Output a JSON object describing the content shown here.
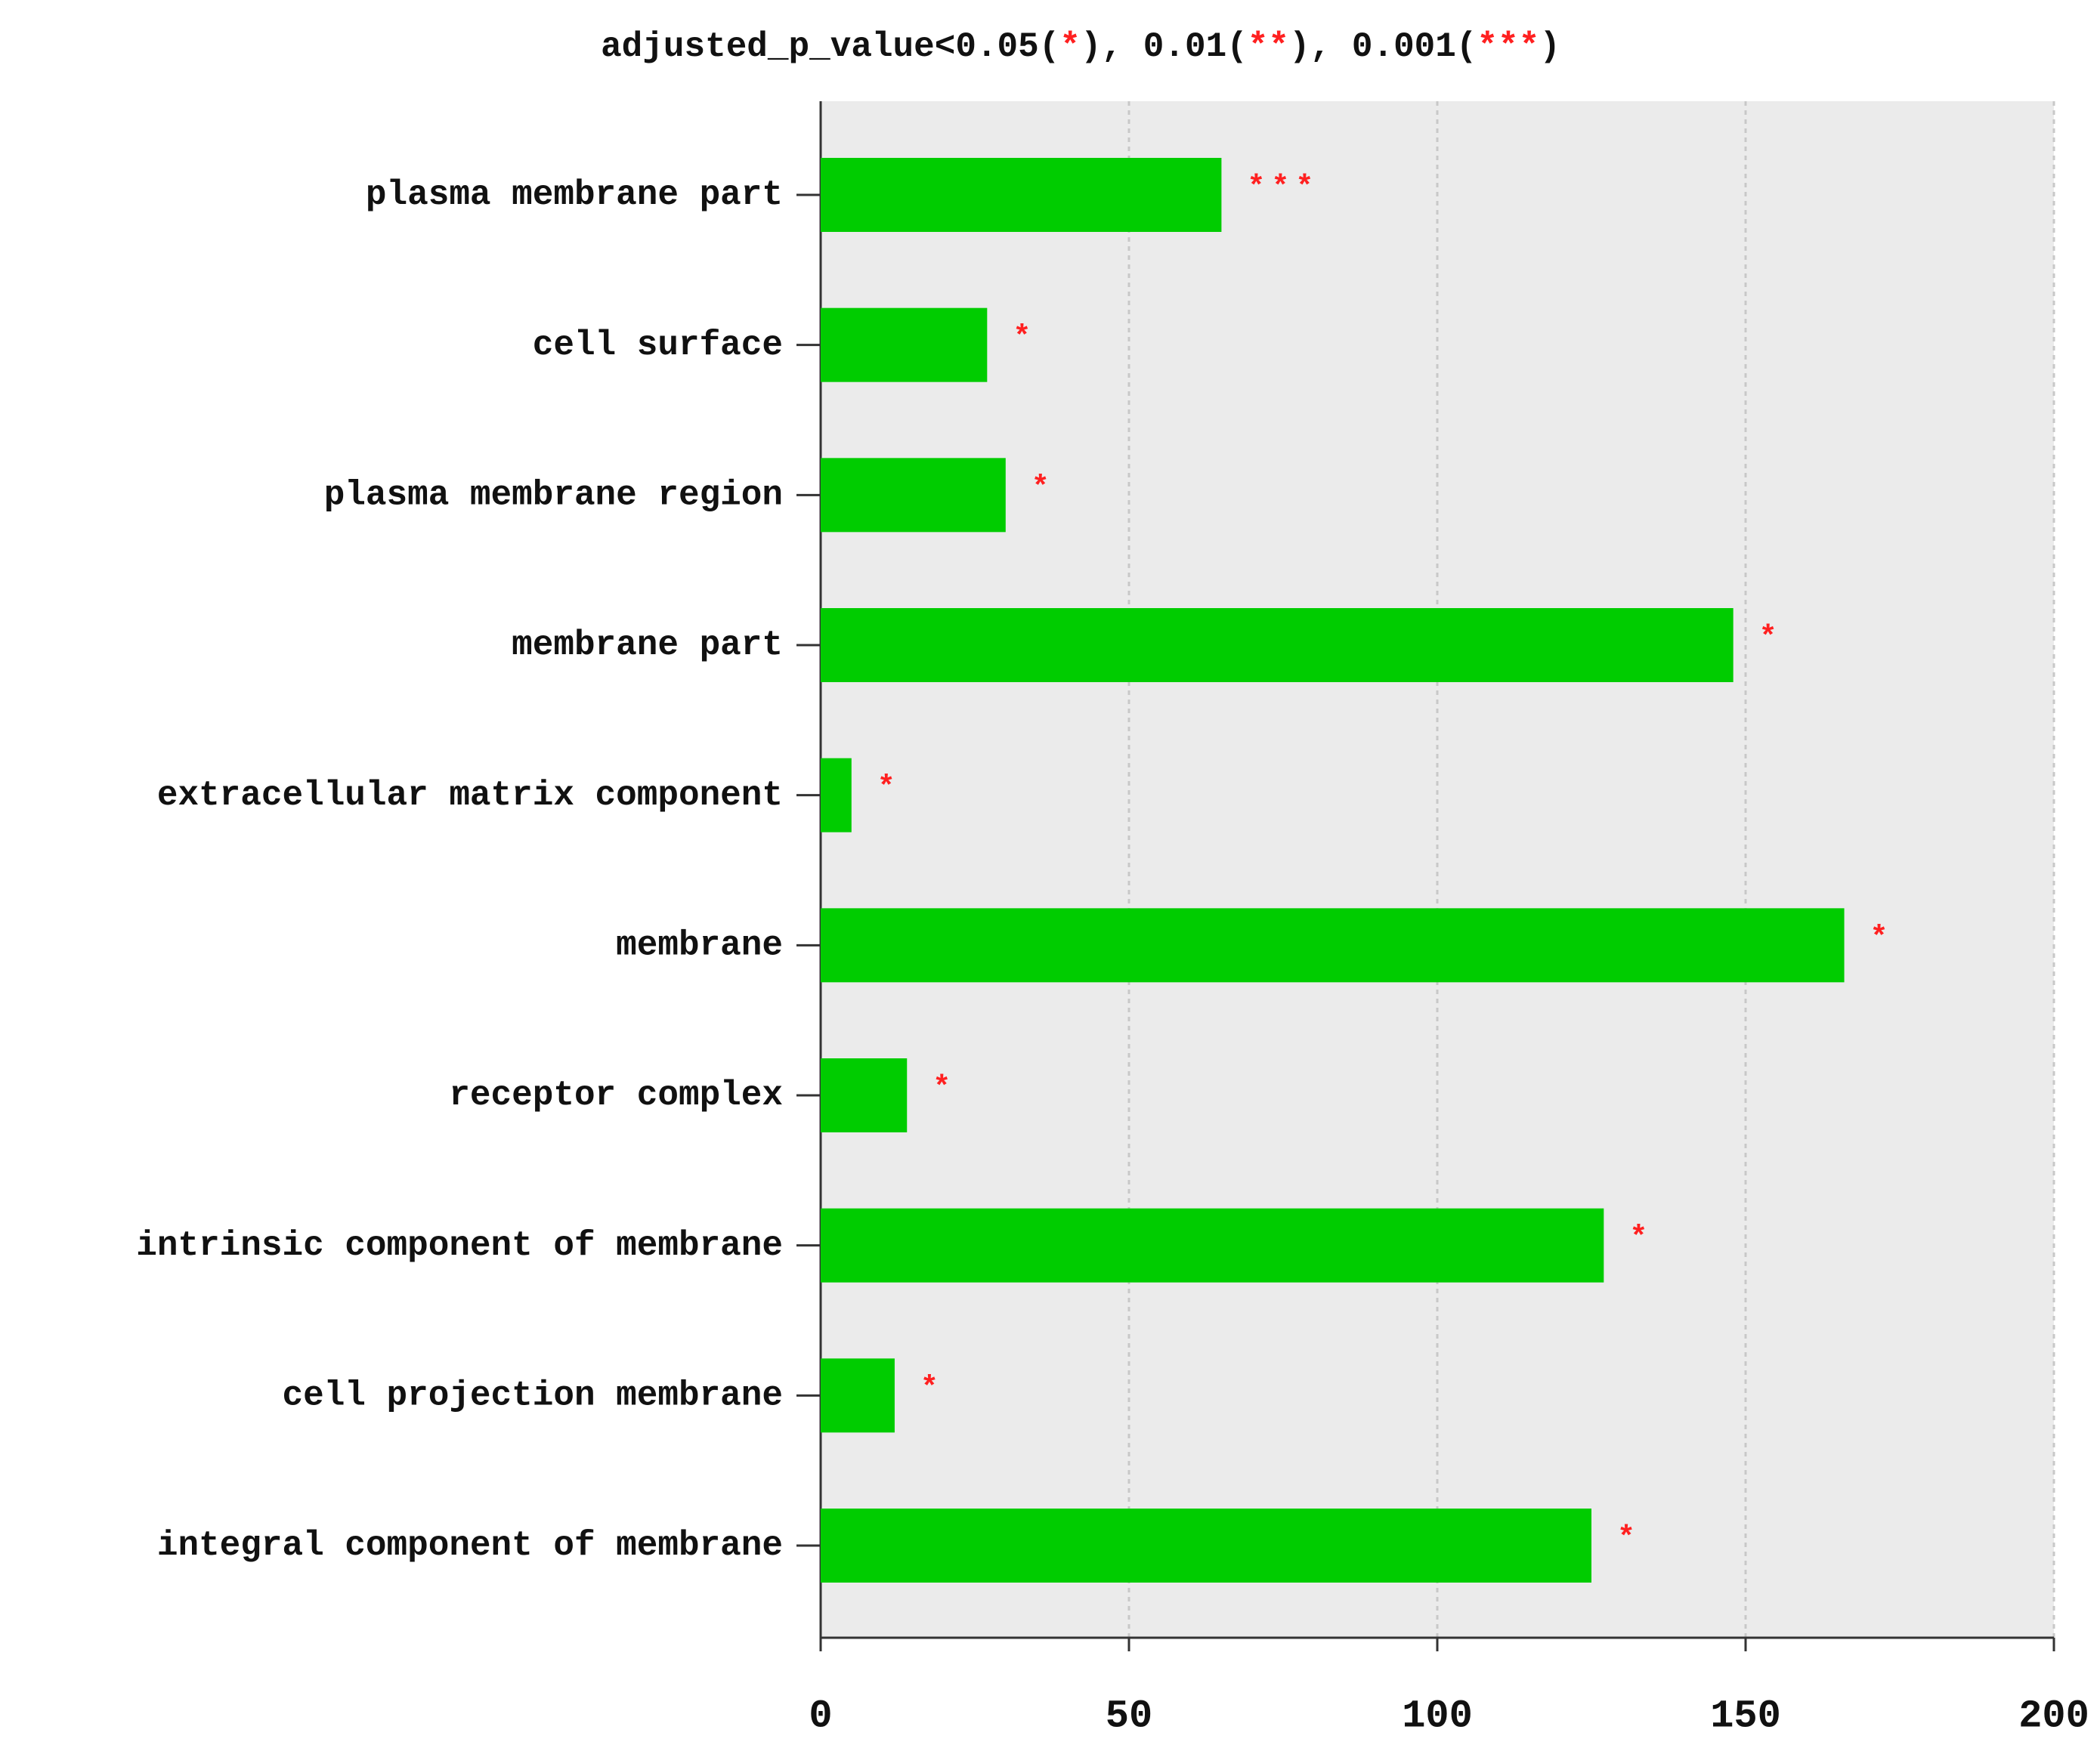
{
  "chart_data": {
    "type": "barh",
    "title_parts": [
      "adjusted_p_value<0.05(",
      "*",
      "), 0.01(",
      "**",
      "), 0.001(",
      "***",
      ")"
    ],
    "categories": [
      "plasma membrane part",
      "cell surface",
      "plasma membrane region",
      "membrane part",
      "extracellular matrix component",
      "membrane",
      "receptor complex",
      "intrinsic component of membrane",
      "cell projection membrane",
      "integral component of membrane"
    ],
    "values": [
      65,
      27,
      30,
      148,
      5,
      166,
      14,
      127,
      12,
      125
    ],
    "annotations": [
      "***",
      "*",
      "*",
      "*",
      "*",
      "*",
      "*",
      "*",
      "*",
      "*"
    ],
    "color": "#00cc00",
    "annotation_color": "#ff2020",
    "xlim": [
      0,
      200
    ],
    "xticks": [
      0,
      50,
      100,
      150,
      200
    ],
    "grid": true
  }
}
